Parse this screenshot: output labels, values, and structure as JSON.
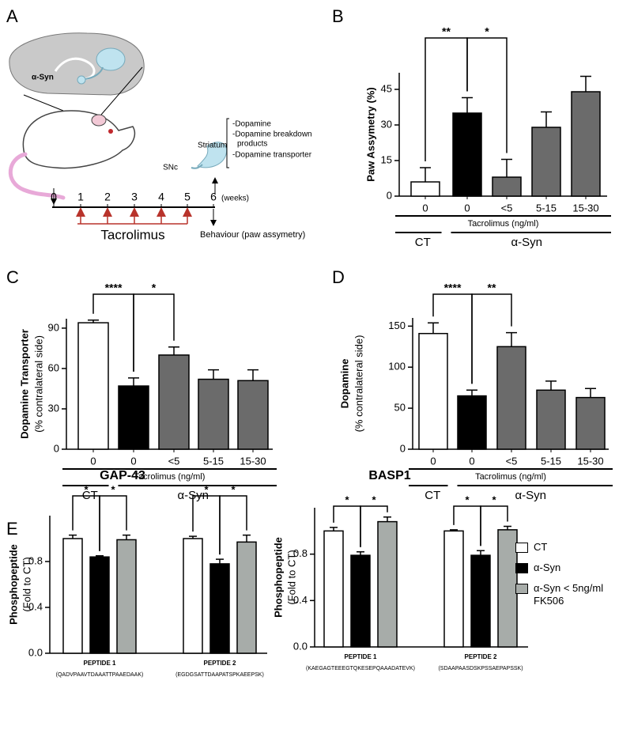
{
  "panel_labels": [
    "A",
    "B",
    "C",
    "D",
    "E"
  ],
  "panel_a": {
    "protein": "α-Syn",
    "region_1": "SNc",
    "region_2": "Striatum",
    "measures": [
      "-Dopamine",
      "-Dopamine breakdown",
      "products",
      "-Dopamine transporter"
    ],
    "timeline_ticks": [
      0,
      1,
      2,
      3,
      4,
      5,
      6
    ],
    "timeline_unit": "(weeks)",
    "treatment": "Tacrolimus",
    "endpoint": "Behaviour (paw assymetry)"
  },
  "chart_data": [
    {
      "type": "bar",
      "y_label": [
        "Paw Assymetry (%)"
      ],
      "categories": [
        "0",
        "0",
        "<5",
        "5-15",
        "15-30"
      ],
      "values": [
        6,
        35,
        8,
        29,
        44
      ],
      "errors": [
        6,
        6.5,
        7.5,
        6.5,
        6.5
      ],
      "colors": [
        "#ffffff",
        "#000000",
        "#6b6b6b",
        "#6b6b6b",
        "#6b6b6b"
      ],
      "ylim": [
        0,
        52
      ],
      "yticks": [
        0,
        15,
        30,
        45
      ],
      "x_label": "Tacrolimus (ng/ml)",
      "groups": [
        "CT",
        "α-Syn"
      ],
      "annotations": [
        "**",
        "*"
      ]
    },
    {
      "type": "bar",
      "y_label": [
        "Dopamine Transporter",
        "(% contralateral side)"
      ],
      "categories": [
        "0",
        "0",
        "<5",
        "5-15",
        "15-30"
      ],
      "values": [
        94,
        47,
        70,
        52,
        51
      ],
      "errors": [
        2,
        6,
        6,
        7,
        8
      ],
      "colors": [
        "#ffffff",
        "#000000",
        "#6b6b6b",
        "#6b6b6b",
        "#6b6b6b"
      ],
      "ylim": [
        0,
        97
      ],
      "yticks": [
        0,
        30,
        60,
        90
      ],
      "x_label": "Tacrolimus (ng/ml)",
      "groups": [
        "CT",
        "α-Syn"
      ],
      "annotations": [
        "****",
        "*"
      ]
    },
    {
      "type": "bar",
      "y_label": [
        "Dopamine",
        "(% contralateral side)"
      ],
      "categories": [
        "0",
        "0",
        "<5",
        "5-15",
        "15-30"
      ],
      "values": [
        141,
        65,
        125,
        72,
        63
      ],
      "errors": [
        13,
        7,
        17,
        11,
        11
      ],
      "colors": [
        "#ffffff",
        "#000000",
        "#6b6b6b",
        "#6b6b6b",
        "#6b6b6b"
      ],
      "ylim": [
        0,
        160
      ],
      "yticks": [
        0,
        50,
        100,
        150
      ],
      "x_label": "Tacrolimus (ng/ml)",
      "groups": [
        "CT",
        "α-Syn"
      ],
      "annotations": [
        "****",
        "**"
      ]
    },
    {
      "type": "grouped_bar",
      "title": "GAP-43",
      "y_label": [
        "Phosphopeptide",
        "(Fold to CT)"
      ],
      "categories": [
        "PEPTIDE 1",
        "PEPTIDE 2"
      ],
      "category_sublabels": [
        "(QADVPAAVTDAAATTPAAEDAAK)",
        "(EGDGSATTDAAPATSPKAEEPSK)"
      ],
      "ylim": [
        0,
        1.2
      ],
      "yticks": [
        {
          "value": 0,
          "label": "0.0"
        },
        0.4,
        0.8
      ],
      "series": [
        {
          "name": "CT",
          "color": "#ffffff",
          "values": [
            1.0,
            1.0
          ],
          "errors": [
            0.03,
            0.02
          ]
        },
        {
          "name": "α-Syn",
          "color": "#000000",
          "values": [
            0.84,
            0.78
          ],
          "errors": [
            0.01,
            0.04
          ]
        },
        {
          "name": "α-Syn < 5ng/ml FK506",
          "color": "#a7aca9",
          "values": [
            0.99,
            0.97
          ],
          "errors": [
            0.04,
            0.06
          ]
        }
      ],
      "annotations": [
        "*",
        "*",
        "*",
        "*"
      ]
    },
    {
      "type": "grouped_bar",
      "title": "BASP1",
      "y_label": [
        "Phosphopeptide",
        "(Fold to CT)"
      ],
      "categories": [
        "PEPTIDE 1",
        "PEPTIDE 2"
      ],
      "category_sublabels": [
        "(KAEGAGTEEEGTQKESEPQAAADATEVK)",
        "(SDAAPAASDSKPSSAEPAPSSK)"
      ],
      "ylim": [
        0,
        1.2
      ],
      "yticks": [
        {
          "value": 0,
          "label": "0.0"
        },
        0.4,
        0.8
      ],
      "series": [
        {
          "color": "#ffffff",
          "values": [
            1.0,
            1.0
          ],
          "errors": [
            0.03,
            0.01
          ]
        },
        {
          "color": "#000000",
          "values": [
            0.79,
            0.79
          ],
          "errors": [
            0.03,
            0.04
          ]
        },
        {
          "color": "#a7aca9",
          "values": [
            1.08,
            1.01
          ],
          "errors": [
            0.04,
            0.03
          ]
        }
      ],
      "annotations": [
        "*",
        "*",
        "*",
        "*"
      ]
    }
  ]
}
